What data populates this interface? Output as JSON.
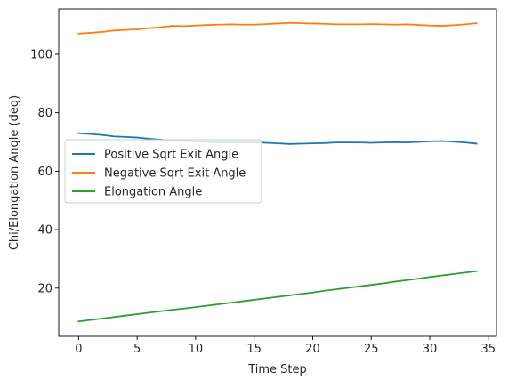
{
  "chart_data": {
    "type": "line",
    "title": "",
    "xlabel": "Time Step",
    "ylabel": "Chi/Elongation Angle (deg)",
    "xlim": [
      -1.7,
      35.7
    ],
    "ylim": [
      3.5,
      115.5
    ],
    "xticks": [
      0,
      5,
      10,
      15,
      20,
      25,
      30,
      35
    ],
    "yticks": [
      20,
      40,
      60,
      80,
      100
    ],
    "grid": false,
    "legend_position": "center-left",
    "x": [
      0,
      1,
      2,
      3,
      4,
      5,
      6,
      7,
      8,
      9,
      10,
      11,
      12,
      13,
      14,
      15,
      16,
      17,
      18,
      19,
      20,
      21,
      22,
      23,
      24,
      25,
      26,
      27,
      28,
      29,
      30,
      31,
      32,
      33,
      34
    ],
    "series": [
      {
        "name": "Positive Sqrt Exit Angle",
        "color": "#1f77b4",
        "values": [
          73.0,
          72.7,
          72.4,
          71.9,
          71.7,
          71.5,
          71.1,
          70.8,
          70.3,
          70.4,
          70.2,
          70.0,
          69.9,
          69.8,
          69.9,
          69.9,
          69.7,
          69.5,
          69.3,
          69.4,
          69.5,
          69.6,
          69.8,
          69.8,
          69.8,
          69.7,
          69.8,
          69.9,
          69.8,
          70.0,
          70.2,
          70.3,
          70.1,
          69.8,
          69.4
        ]
      },
      {
        "name": "Negative Sqrt Exit Angle",
        "color": "#ff7f0e",
        "values": [
          107.0,
          107.3,
          107.6,
          108.1,
          108.3,
          108.5,
          108.9,
          109.2,
          109.7,
          109.6,
          109.8,
          110.0,
          110.1,
          110.2,
          110.1,
          110.1,
          110.3,
          110.5,
          110.7,
          110.6,
          110.5,
          110.4,
          110.2,
          110.2,
          110.2,
          110.3,
          110.2,
          110.1,
          110.2,
          110.0,
          109.8,
          109.7,
          109.9,
          110.2,
          110.6
        ]
      },
      {
        "name": "Elongation Angle",
        "color": "#2ca02c",
        "values": [
          8.6,
          9.1,
          9.6,
          10.1,
          10.6,
          11.1,
          11.6,
          12.1,
          12.6,
          13.0,
          13.5,
          14.0,
          14.5,
          15.0,
          15.5,
          16.0,
          16.5,
          17.0,
          17.5,
          18.0,
          18.5,
          19.1,
          19.6,
          20.1,
          20.6,
          21.1,
          21.6,
          22.2,
          22.7,
          23.2,
          23.8,
          24.3,
          24.8,
          25.3,
          25.8
        ]
      }
    ]
  }
}
